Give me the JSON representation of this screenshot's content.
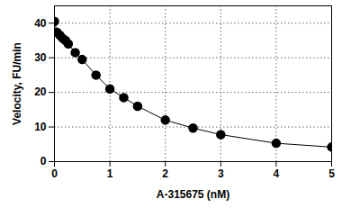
{
  "chart_data": {
    "type": "scatter",
    "xlabel": "A-315675 (nM)",
    "ylabel": "Velocity, FU/min",
    "x": [
      0,
      0.05,
      0.1,
      0.15,
      0.2,
      0.25,
      0.375,
      0.5,
      0.75,
      1.0,
      1.25,
      1.5,
      2.0,
      2.5,
      3.0,
      4.0,
      5.0
    ],
    "values": [
      40.5,
      37.3,
      36.5,
      35.6,
      35.0,
      34.0,
      31.5,
      29.5,
      25.0,
      21.0,
      18.5,
      16.0,
      12.0,
      9.7,
      7.8,
      5.3,
      4.2
    ],
    "color": "#000000",
    "marker": "circle",
    "line_style": "solid",
    "xlim": [
      0,
      5
    ],
    "xticks": [
      0,
      1,
      2,
      3,
      4,
      5
    ],
    "ylim": [
      0,
      45
    ],
    "yticks": [
      0,
      10,
      20,
      30,
      40
    ],
    "grid": true
  }
}
